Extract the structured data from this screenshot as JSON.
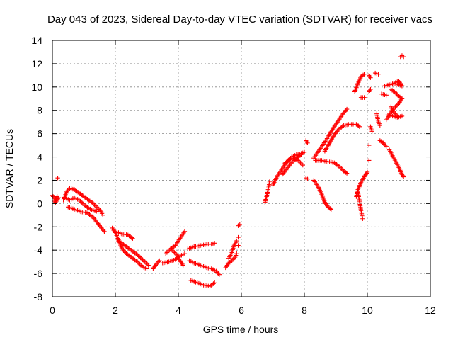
{
  "chart_data": {
    "type": "scatter",
    "title": "Day 043 of 2023, Sidereal Day-to-day VTEC variation (SDTVAR) for receiver vacs",
    "xlabel": "GPS time / hours",
    "ylabel": "SDTVAR / TECUs",
    "xlim": [
      0,
      12
    ],
    "ylim": [
      -8,
      14
    ],
    "xticks": [
      "0",
      "2",
      "4",
      "6",
      "8",
      "10",
      "12"
    ],
    "yticks": [
      "-8",
      "-6",
      "-4",
      "-2",
      "0",
      "2",
      "4",
      "6",
      "8",
      "10",
      "12",
      "14"
    ],
    "grid": true,
    "marker": "plus",
    "color": "#ff0000",
    "tracks": [
      [
        [
          0.0,
          0.7
        ],
        [
          0.05,
          0.5
        ],
        [
          0.1,
          0.4
        ],
        [
          0.15,
          0.6
        ],
        [
          0.2,
          0.5
        ],
        [
          0.1,
          0.1
        ],
        [
          0.05,
          0.2
        ]
      ],
      [
        [
          0.17,
          2.2
        ]
      ],
      [
        [
          0.35,
          0.3
        ],
        [
          0.45,
          1.0
        ],
        [
          0.55,
          1.3
        ],
        [
          0.7,
          1.2
        ],
        [
          0.85,
          0.9
        ],
        [
          1.0,
          0.6
        ],
        [
          1.15,
          0.3
        ],
        [
          1.3,
          0.0
        ],
        [
          1.45,
          -0.4
        ],
        [
          1.55,
          -0.7
        ],
        [
          1.6,
          -1.0
        ]
      ],
      [
        [
          0.4,
          0.5
        ],
        [
          0.55,
          0.3
        ],
        [
          0.7,
          0.5
        ],
        [
          0.85,
          0.3
        ],
        [
          1.0,
          -0.1
        ],
        [
          1.15,
          -0.4
        ],
        [
          1.3,
          -0.6
        ],
        [
          1.45,
          -0.7
        ]
      ],
      [
        [
          0.5,
          -0.3
        ],
        [
          0.7,
          -0.5
        ],
        [
          0.9,
          -0.7
        ],
        [
          1.1,
          -0.8
        ],
        [
          1.3,
          -1.2
        ],
        [
          1.5,
          -1.9
        ],
        [
          1.65,
          -2.4
        ]
      ],
      [
        [
          1.9,
          -2.1
        ],
        [
          2.0,
          -2.5
        ],
        [
          2.1,
          -3.1
        ],
        [
          2.2,
          -3.8
        ],
        [
          2.35,
          -4.3
        ],
        [
          2.5,
          -4.6
        ],
        [
          2.7,
          -5.0
        ],
        [
          2.85,
          -5.4
        ],
        [
          3.0,
          -5.6
        ]
      ],
      [
        [
          2.0,
          -2.4
        ],
        [
          2.2,
          -2.6
        ],
        [
          2.4,
          -2.7
        ],
        [
          2.55,
          -3.0
        ]
      ],
      [
        [
          2.1,
          -3.2
        ],
        [
          2.3,
          -3.6
        ],
        [
          2.5,
          -4.0
        ],
        [
          2.7,
          -4.4
        ],
        [
          2.9,
          -4.9
        ],
        [
          3.05,
          -5.3
        ]
      ],
      [
        [
          3.2,
          -5.6
        ],
        [
          3.3,
          -5.2
        ],
        [
          3.4,
          -4.9
        ]
      ],
      [
        [
          3.5,
          -5.1
        ],
        [
          3.7,
          -5.0
        ],
        [
          3.9,
          -4.8
        ],
        [
          4.05,
          -4.5
        ],
        [
          4.2,
          -4.3
        ]
      ],
      [
        [
          3.6,
          -4.3
        ],
        [
          3.75,
          -3.9
        ],
        [
          3.9,
          -3.6
        ],
        [
          4.05,
          -3.0
        ],
        [
          4.2,
          -2.4
        ]
      ],
      [
        [
          3.8,
          -4.0
        ],
        [
          3.95,
          -4.4
        ],
        [
          4.05,
          -4.9
        ],
        [
          4.15,
          -5.3
        ]
      ],
      [
        [
          4.3,
          -3.9
        ],
        [
          4.5,
          -3.7
        ],
        [
          4.7,
          -3.6
        ],
        [
          4.9,
          -3.5
        ],
        [
          5.05,
          -3.5
        ],
        [
          5.15,
          -3.4
        ]
      ],
      [
        [
          4.35,
          -4.9
        ],
        [
          4.5,
          -5.1
        ],
        [
          4.7,
          -5.3
        ],
        [
          4.9,
          -5.5
        ],
        [
          5.05,
          -5.6
        ],
        [
          5.2,
          -5.8
        ],
        [
          5.3,
          -6.1
        ]
      ],
      [
        [
          4.4,
          -6.6
        ],
        [
          4.6,
          -6.8
        ],
        [
          4.8,
          -7.0
        ],
        [
          5.0,
          -7.1
        ],
        [
          5.15,
          -6.8
        ]
      ],
      [
        [
          5.5,
          -5.5
        ],
        [
          5.6,
          -5.1
        ],
        [
          5.7,
          -4.9
        ],
        [
          5.8,
          -4.6
        ],
        [
          5.85,
          -4.3
        ]
      ],
      [
        [
          5.6,
          -4.7
        ],
        [
          5.7,
          -4.2
        ],
        [
          5.75,
          -3.7
        ],
        [
          5.85,
          -3.2
        ]
      ],
      [
        [
          5.9,
          -1.9
        ],
        [
          5.95,
          -1.8
        ]
      ],
      [
        [
          5.9,
          -2.9
        ]
      ],
      [
        [
          5.9,
          -3.6
        ]
      ],
      [
        [
          6.75,
          0.1
        ],
        [
          6.8,
          0.6
        ],
        [
          6.85,
          1.2
        ],
        [
          6.9,
          1.9
        ]
      ],
      [
        [
          7.0,
          1.6
        ],
        [
          7.15,
          2.4
        ],
        [
          7.3,
          3.0
        ],
        [
          7.45,
          3.6
        ],
        [
          7.6,
          4.0
        ],
        [
          7.75,
          4.2
        ],
        [
          7.9,
          4.3
        ],
        [
          8.0,
          4.4
        ]
      ],
      [
        [
          7.3,
          2.5
        ],
        [
          7.45,
          3.0
        ],
        [
          7.6,
          3.5
        ],
        [
          7.75,
          3.9
        ],
        [
          7.9,
          4.2
        ]
      ],
      [
        [
          7.35,
          3.4
        ],
        [
          7.5,
          3.7
        ],
        [
          7.65,
          3.9
        ],
        [
          7.8,
          3.7
        ],
        [
          7.95,
          3.3
        ]
      ],
      [
        [
          8.05,
          5.4
        ],
        [
          8.1,
          5.2
        ]
      ],
      [
        [
          8.05,
          2.2
        ],
        [
          8.1,
          2.1
        ]
      ],
      [
        [
          8.3,
          2.0
        ],
        [
          8.45,
          1.4
        ],
        [
          8.55,
          0.8
        ],
        [
          8.65,
          0.1
        ],
        [
          8.75,
          -0.3
        ],
        [
          8.85,
          -0.5
        ]
      ],
      [
        [
          8.3,
          3.9
        ],
        [
          8.45,
          4.5
        ],
        [
          8.6,
          5.1
        ],
        [
          8.75,
          5.7
        ],
        [
          8.9,
          6.4
        ],
        [
          9.05,
          7.0
        ],
        [
          9.2,
          7.6
        ],
        [
          9.35,
          8.1
        ]
      ],
      [
        [
          8.35,
          3.7
        ],
        [
          8.55,
          3.7
        ],
        [
          8.75,
          3.6
        ],
        [
          8.95,
          3.5
        ],
        [
          9.1,
          3.2
        ],
        [
          9.25,
          2.8
        ],
        [
          9.35,
          2.6
        ]
      ],
      [
        [
          8.65,
          4.5
        ],
        [
          8.8,
          5.2
        ],
        [
          8.95,
          5.9
        ],
        [
          9.1,
          6.4
        ],
        [
          9.25,
          6.7
        ],
        [
          9.4,
          6.8
        ],
        [
          9.55,
          6.8
        ]
      ],
      [
        [
          9.65,
          0.6
        ],
        [
          9.7,
          1.2
        ],
        [
          9.8,
          1.8
        ],
        [
          9.9,
          2.3
        ],
        [
          10.0,
          2.7
        ]
      ],
      [
        [
          9.7,
          1.0
        ],
        [
          9.75,
          0.2
        ],
        [
          9.8,
          -0.6
        ],
        [
          9.85,
          -1.3
        ]
      ],
      [
        [
          9.6,
          9.6
        ],
        [
          9.7,
          10.3
        ],
        [
          9.8,
          10.9
        ],
        [
          9.9,
          11.1
        ]
      ],
      [
        [
          9.65,
          6.8
        ],
        [
          9.75,
          6.6
        ]
      ],
      [
        [
          9.8,
          9.1
        ],
        [
          9.9,
          9.1
        ]
      ],
      [
        [
          10.05,
          9.6
        ],
        [
          10.1,
          9.8
        ]
      ],
      [
        [
          10.05,
          11.0
        ],
        [
          10.1,
          10.8
        ]
      ],
      [
        [
          10.1,
          6.6
        ],
        [
          10.15,
          6.2
        ]
      ],
      [
        [
          10.05,
          5.0
        ]
      ],
      [
        [
          10.05,
          3.7
        ]
      ],
      [
        [
          10.25,
          11.2
        ],
        [
          10.35,
          11.1
        ]
      ],
      [
        [
          10.3,
          7.7
        ],
        [
          10.35,
          7.0
        ],
        [
          10.4,
          6.7
        ]
      ],
      [
        [
          10.4,
          5.4
        ],
        [
          10.5,
          5.2
        ]
      ],
      [
        [
          10.45,
          9.4
        ],
        [
          10.6,
          9.3
        ]
      ],
      [
        [
          10.5,
          5.2
        ],
        [
          10.6,
          4.9
        ]
      ],
      [
        [
          10.55,
          10.1
        ],
        [
          10.7,
          10.2
        ],
        [
          10.85,
          10.3
        ],
        [
          11.0,
          10.2
        ],
        [
          11.1,
          10.1
        ]
      ],
      [
        [
          10.75,
          10.2
        ],
        [
          10.9,
          10.4
        ],
        [
          11.0,
          10.5
        ],
        [
          11.1,
          10.1
        ]
      ],
      [
        [
          10.75,
          9.8
        ],
        [
          10.9,
          9.5
        ],
        [
          11.0,
          9.2
        ],
        [
          11.1,
          9.0
        ]
      ],
      [
        [
          10.6,
          7.2
        ],
        [
          10.75,
          7.8
        ],
        [
          10.85,
          8.2
        ],
        [
          11.0,
          8.6
        ],
        [
          11.1,
          9.0
        ]
      ],
      [
        [
          10.65,
          7.6
        ],
        [
          10.8,
          7.5
        ],
        [
          10.95,
          7.4
        ],
        [
          11.1,
          7.5
        ]
      ],
      [
        [
          10.75,
          8.3
        ],
        [
          10.85,
          7.8
        ],
        [
          10.95,
          7.5
        ]
      ],
      [
        [
          10.7,
          4.6
        ],
        [
          10.8,
          4.1
        ],
        [
          10.9,
          3.6
        ],
        [
          11.0,
          3.1
        ],
        [
          11.1,
          2.5
        ],
        [
          11.15,
          2.3
        ]
      ],
      [
        [
          11.05,
          12.6
        ],
        [
          11.1,
          12.7
        ],
        [
          11.15,
          12.6
        ]
      ]
    ]
  }
}
